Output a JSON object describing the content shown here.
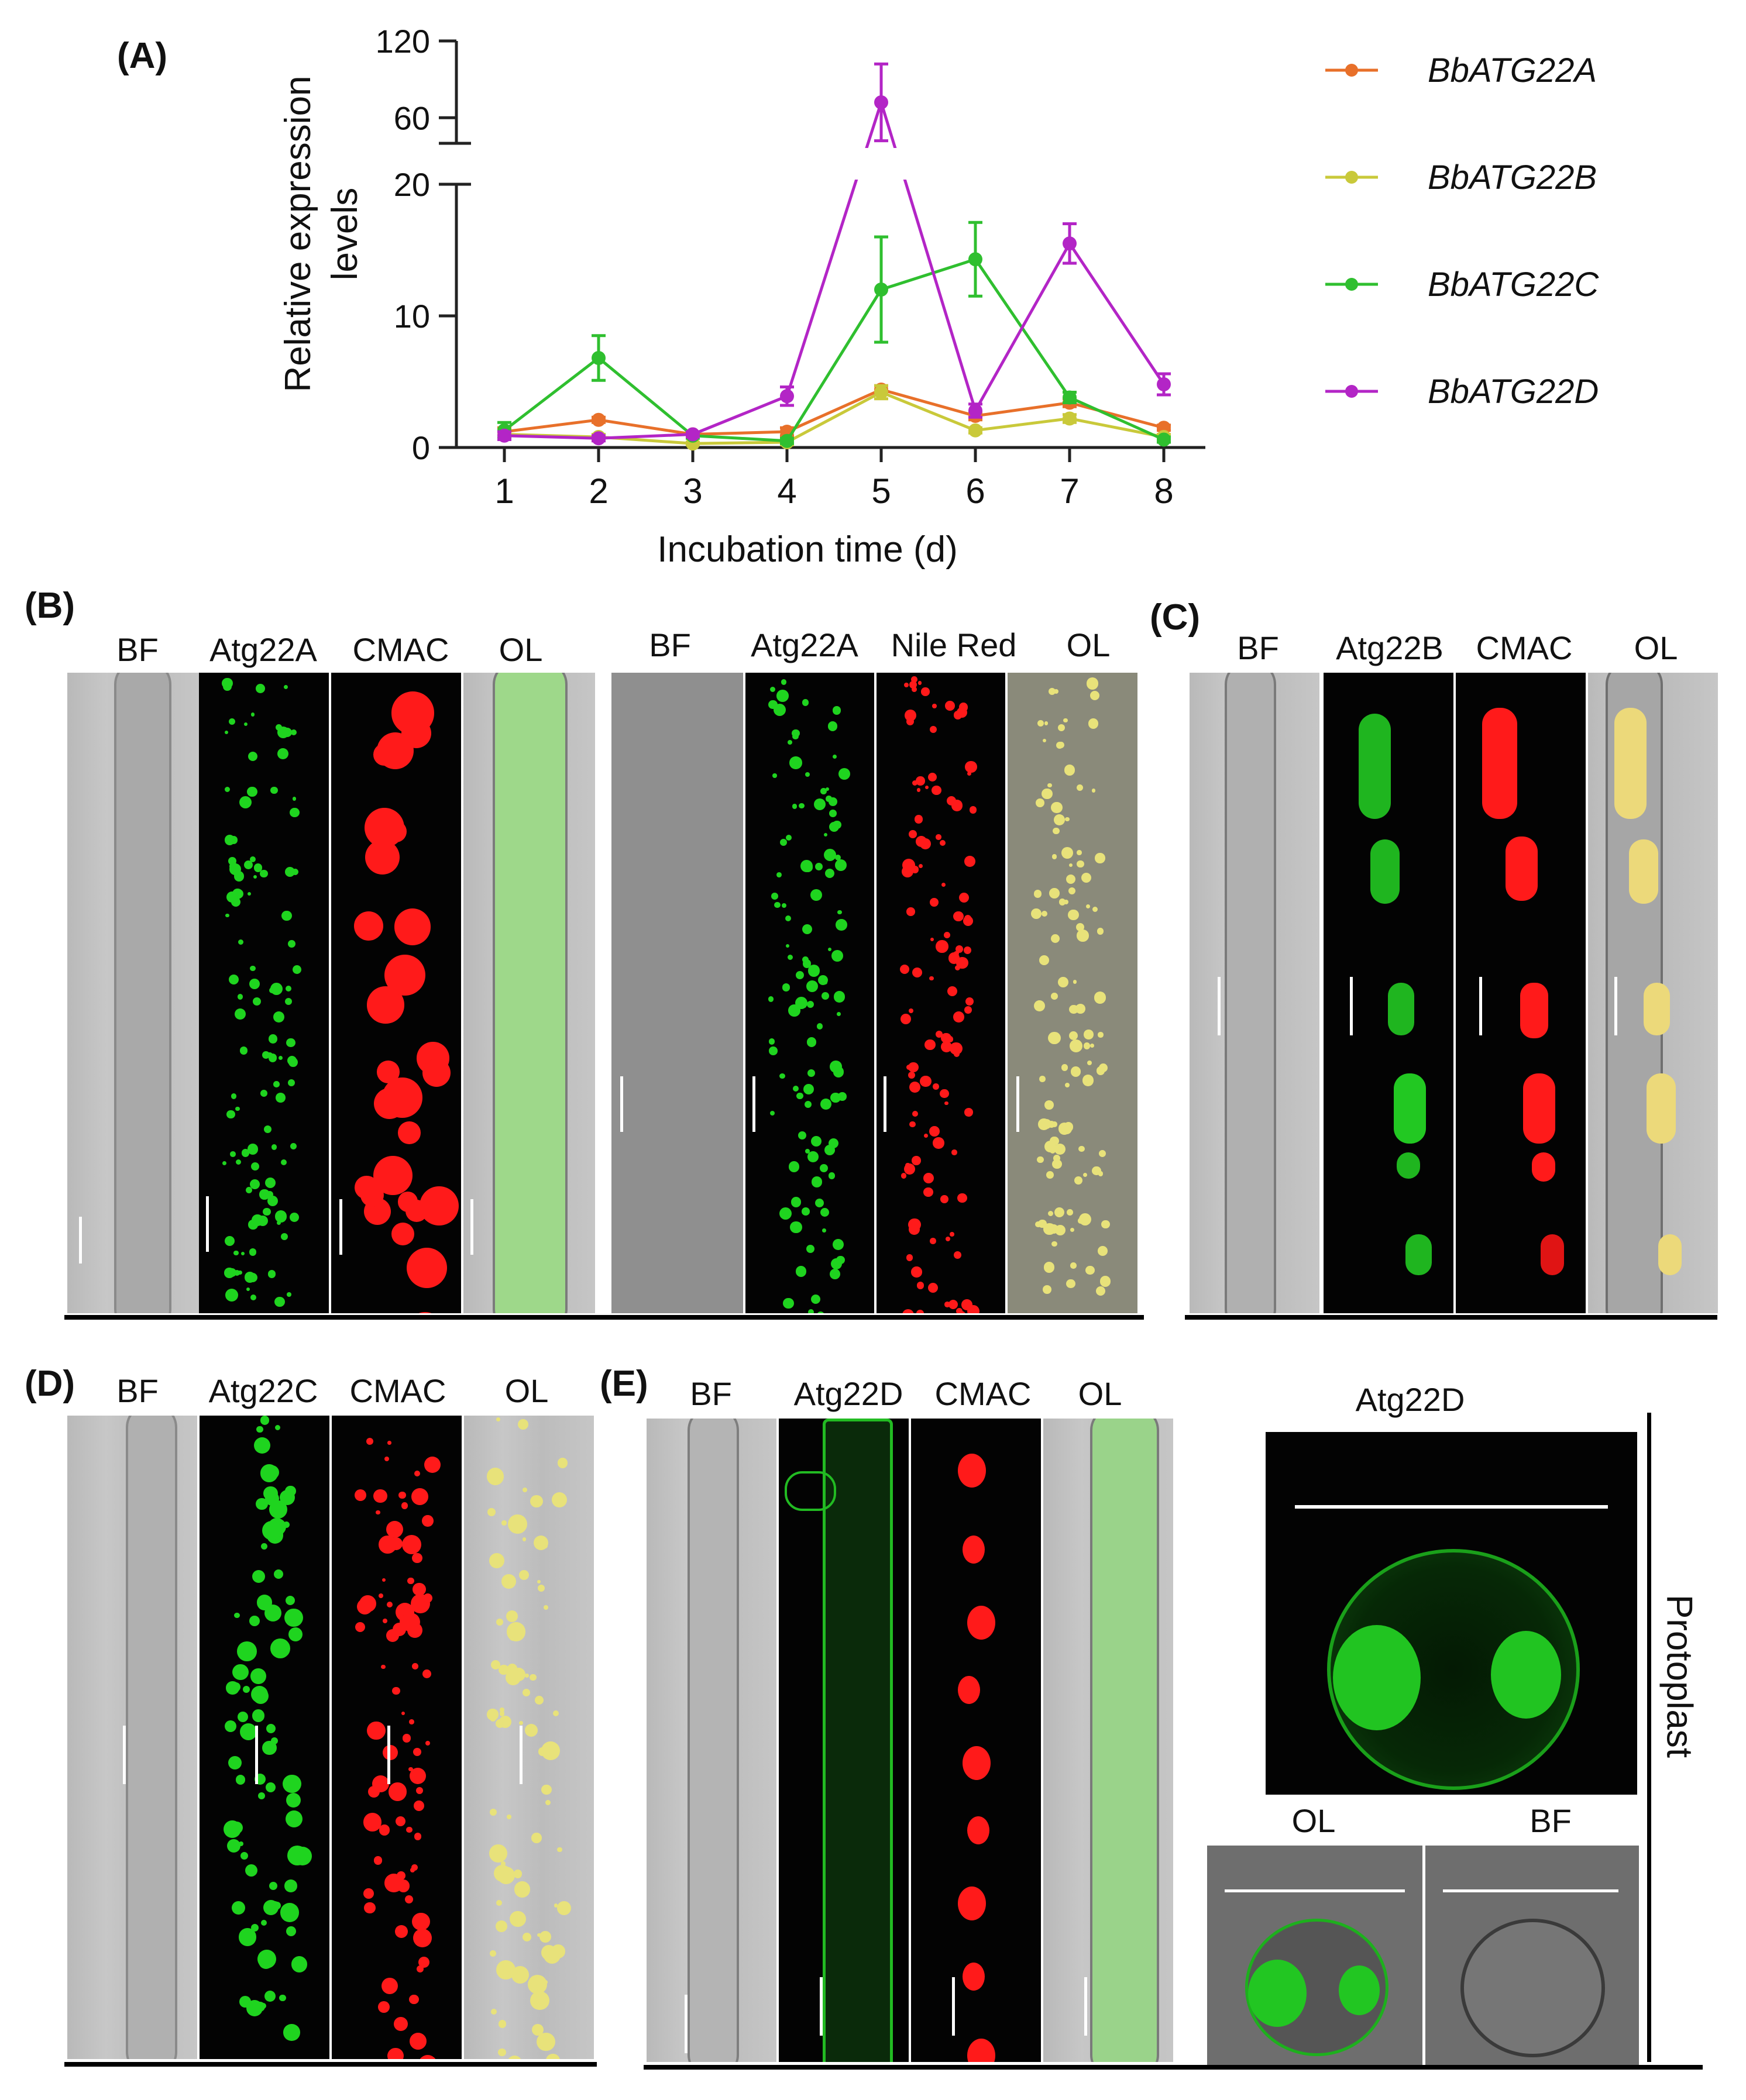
{
  "panel_labels": {
    "a": "(A)",
    "b": "(B)",
    "c": "(C)",
    "d": "(D)",
    "e": "(E)"
  },
  "chart_data": {
    "type": "line",
    "xlabel": "Incubation time (d)",
    "ylabel_line1": "Relative expression",
    "ylabel_line2": "levels",
    "x": [
      1,
      2,
      3,
      4,
      5,
      6,
      7,
      8
    ],
    "y_axis_break": {
      "lower_range": [
        0,
        20
      ],
      "upper_range": [
        40,
        120
      ],
      "lower_ticks": [
        "0",
        "10",
        "20"
      ],
      "upper_ticks": [
        "60",
        "120"
      ]
    },
    "xticks": [
      "1",
      "2",
      "3",
      "4",
      "5",
      "6",
      "7",
      "8"
    ],
    "series": [
      {
        "name": "BbATG22A",
        "color": "#e8702a",
        "values": [
          1.2,
          2.1,
          1.0,
          1.2,
          4.4,
          2.4,
          3.4,
          1.5
        ],
        "errors": [
          0.3,
          0.2,
          0.2,
          0.3,
          0.3,
          0.3,
          0.3,
          0.2
        ]
      },
      {
        "name": "BbATG22B",
        "color": "#c9c93a",
        "values": [
          1.0,
          0.8,
          0.3,
          0.4,
          4.2,
          1.3,
          2.2,
          0.8
        ],
        "errors": [
          0.2,
          0.2,
          0.1,
          0.2,
          0.5,
          0.2,
          0.3,
          0.2
        ]
      },
      {
        "name": "BbATG22C",
        "color": "#2fbf2f",
        "values": [
          1.3,
          6.8,
          0.9,
          0.5,
          12.0,
          14.3,
          3.8,
          0.6
        ],
        "errors": [
          0.6,
          1.7,
          0.2,
          0.2,
          4.0,
          2.8,
          0.4,
          0.2
        ]
      },
      {
        "name": "BbATG22D",
        "color": "#b325c6",
        "values": [
          0.9,
          0.7,
          1.0,
          3.9,
          72,
          2.8,
          15.5,
          4.8
        ],
        "errors": [
          0.3,
          0.2,
          0.2,
          0.7,
          30,
          0.5,
          1.5,
          0.8
        ]
      }
    ]
  },
  "panel_b": {
    "set1": {
      "bf": "BF",
      "ch": "Atg22A",
      "dye": "CMAC",
      "ol": "OL"
    },
    "set2": {
      "bf": "BF",
      "ch": "Atg22A",
      "dye": "Nile Red",
      "ol": "OL"
    }
  },
  "panel_c": {
    "bf": "BF",
    "ch": "Atg22B",
    "dye": "CMAC",
    "ol": "OL"
  },
  "panel_d": {
    "bf": "BF",
    "ch": "Atg22C",
    "dye": "CMAC",
    "ol": "OL"
  },
  "panel_e": {
    "bf": "BF",
    "ch": "Atg22D",
    "dye": "CMAC",
    "ol": "OL",
    "protoplast_title": "Atg22D",
    "ol_small": "OL",
    "bf_small": "BF",
    "side_label": "Protoplast"
  },
  "colors": {
    "green": "#1fd41f",
    "red": "#ff1a1a",
    "overlay_yellow": "#e8e27a"
  }
}
